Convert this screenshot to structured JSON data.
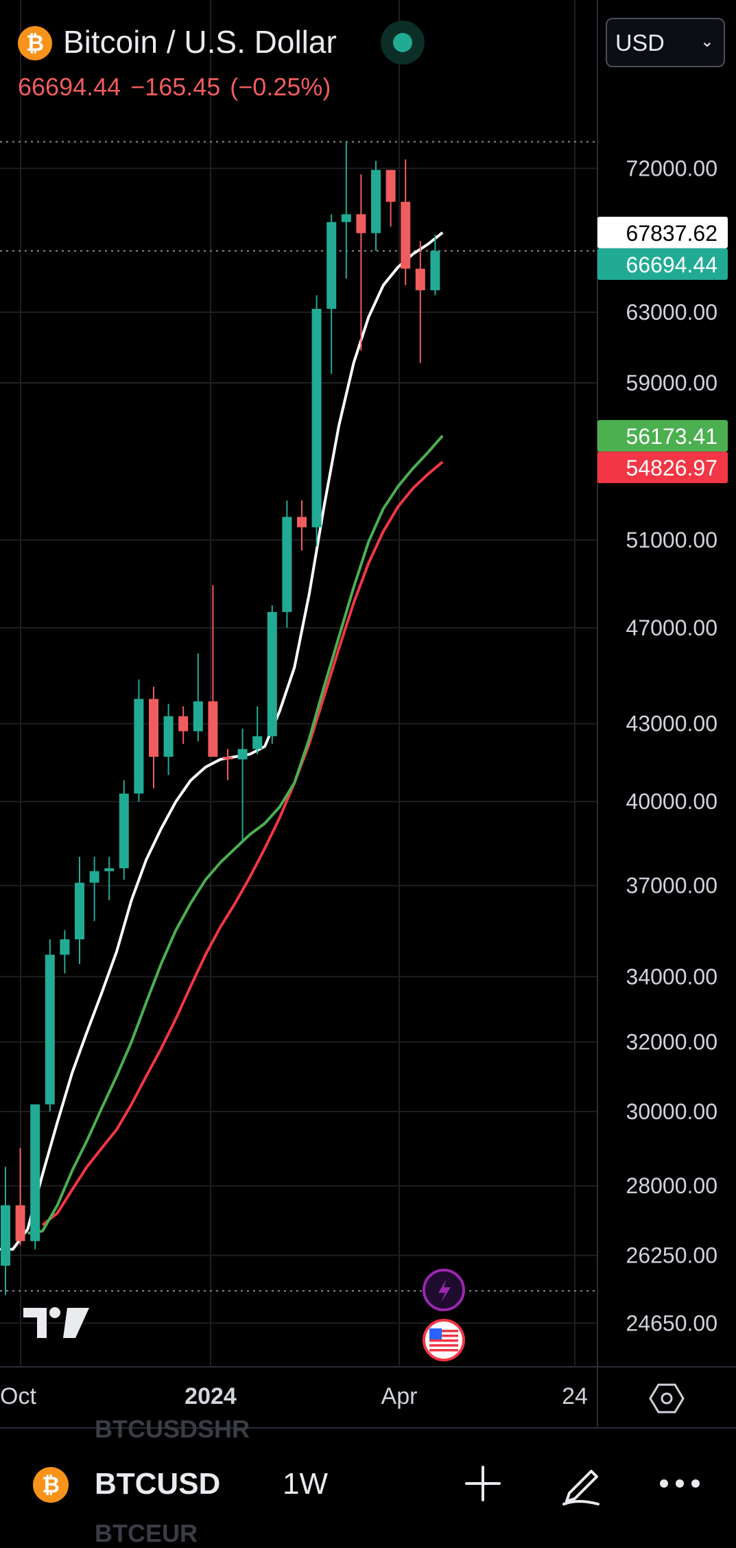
{
  "header": {
    "title": "Bitcoin / U.S. Dollar",
    "price": "66694.44",
    "change": "−165.45",
    "change_pct": "(−0.25%)",
    "currency": "USD"
  },
  "colors": {
    "up": "#22ab94",
    "down": "#f05d5e",
    "ma_white": "#ffffff",
    "ma_green": "#4caf50",
    "ma_red": "#f23645",
    "grid": "#1e1f24",
    "axis_text": "#d1d4dc"
  },
  "chart_data": {
    "type": "candlestick",
    "symbol": "BTCUSD",
    "interval": "1W",
    "y_scale": "log",
    "ylim": [
      23700,
      77000
    ],
    "y_ticks": [
      "72000.00",
      "63000.00",
      "59000.00",
      "51000.00",
      "47000.00",
      "43000.00",
      "40000.00",
      "37000.00",
      "34000.00",
      "32000.00",
      "30000.00",
      "28000.00",
      "26250.00",
      "24650.00"
    ],
    "x_ticks": [
      "Oct",
      "2024",
      "Apr",
      "24"
    ],
    "price_labels": [
      {
        "text": "67837.62",
        "value": 67837.62,
        "bg": "#ffffff",
        "fg": "#000000"
      },
      {
        "text": "66694.44",
        "value": 66694.44,
        "bg": "#22ab94",
        "fg": "#ffffff"
      },
      {
        "text": "56173.41",
        "value": 56173.41,
        "bg": "#4caf50",
        "fg": "#ffffff"
      },
      {
        "text": "54826.97",
        "value": 54826.97,
        "bg": "#f23645",
        "fg": "#ffffff"
      }
    ],
    "dotted_levels": [
      73800,
      66694.44,
      25400
    ],
    "candles": [
      {
        "o": 26000,
        "h": 28500,
        "l": 25300,
        "c": 27500
      },
      {
        "o": 27500,
        "h": 29000,
        "l": 26500,
        "c": 26600
      },
      {
        "o": 26600,
        "h": 30200,
        "l": 26400,
        "c": 30200
      },
      {
        "o": 30200,
        "h": 35200,
        "l": 30000,
        "c": 34700
      },
      {
        "o": 34700,
        "h": 35500,
        "l": 34100,
        "c": 35200
      },
      {
        "o": 35200,
        "h": 38000,
        "l": 34400,
        "c": 37100
      },
      {
        "o": 37100,
        "h": 38000,
        "l": 35800,
        "c": 37500
      },
      {
        "o": 37500,
        "h": 38000,
        "l": 36500,
        "c": 37600
      },
      {
        "o": 37600,
        "h": 40800,
        "l": 37200,
        "c": 40300
      },
      {
        "o": 40300,
        "h": 44800,
        "l": 40000,
        "c": 44000
      },
      {
        "o": 44000,
        "h": 44500,
        "l": 40500,
        "c": 41700
      },
      {
        "o": 41700,
        "h": 43800,
        "l": 41000,
        "c": 43300
      },
      {
        "o": 43300,
        "h": 43700,
        "l": 42200,
        "c": 42700
      },
      {
        "o": 42700,
        "h": 45900,
        "l": 42300,
        "c": 43900
      },
      {
        "o": 43900,
        "h": 48900,
        "l": 41900,
        "c": 41700
      },
      {
        "o": 41700,
        "h": 42000,
        "l": 40800,
        "c": 41600
      },
      {
        "o": 41600,
        "h": 42800,
        "l": 38500,
        "c": 42000
      },
      {
        "o": 42000,
        "h": 43700,
        "l": 41800,
        "c": 42500
      },
      {
        "o": 42500,
        "h": 48000,
        "l": 42200,
        "c": 47700
      },
      {
        "o": 47700,
        "h": 52900,
        "l": 47000,
        "c": 52100
      },
      {
        "o": 52100,
        "h": 52900,
        "l": 50500,
        "c": 51600
      },
      {
        "o": 51600,
        "h": 64000,
        "l": 50700,
        "c": 63200
      },
      {
        "o": 63200,
        "h": 69000,
        "l": 59500,
        "c": 68500
      },
      {
        "o": 68500,
        "h": 73800,
        "l": 65000,
        "c": 69000
      },
      {
        "o": 69000,
        "h": 71600,
        "l": 60800,
        "c": 67800
      },
      {
        "o": 67800,
        "h": 72500,
        "l": 66700,
        "c": 71900
      },
      {
        "o": 71900,
        "h": 71900,
        "l": 68200,
        "c": 69800
      },
      {
        "o": 69800,
        "h": 72600,
        "l": 64600,
        "c": 65600
      },
      {
        "o": 65600,
        "h": 67300,
        "l": 60100,
        "c": 64300
      },
      {
        "o": 64300,
        "h": 67700,
        "l": 64000,
        "c": 66694.44
      }
    ],
    "ma_white": [
      26400,
      26400,
      26900,
      28300,
      29700,
      31100,
      32300,
      33500,
      34800,
      36500,
      37900,
      39000,
      40000,
      40800,
      41300,
      41600,
      41700,
      41800,
      42100,
      43500,
      45300,
      48500,
      52600,
      56700,
      60100,
      62700,
      64600,
      65700,
      66500,
      67100,
      67837.62
    ],
    "ma_green": [
      26800,
      26850,
      27500,
      28400,
      29200,
      30100,
      31000,
      32000,
      33200,
      34400,
      35500,
      36400,
      37200,
      37800,
      38300,
      38800,
      39200,
      39800,
      40700,
      42400,
      44500,
      46600,
      48800,
      50900,
      52500,
      53600,
      54500,
      55300,
      56173.41
    ],
    "ma_red": [
      27000,
      27300,
      27900,
      28500,
      29000,
      29500,
      30200,
      31000,
      31800,
      32700,
      33700,
      34700,
      35600,
      36400,
      37300,
      38300,
      39400,
      40700,
      42200,
      44100,
      46100,
      48100,
      49900,
      51400,
      52600,
      53500,
      54200,
      54826.97
    ],
    "ghost_symbols": [
      "BTCUSDSHR",
      "BTCEUR"
    ]
  },
  "toolbar": {
    "symbol": "BTCUSD",
    "interval": "1W"
  }
}
